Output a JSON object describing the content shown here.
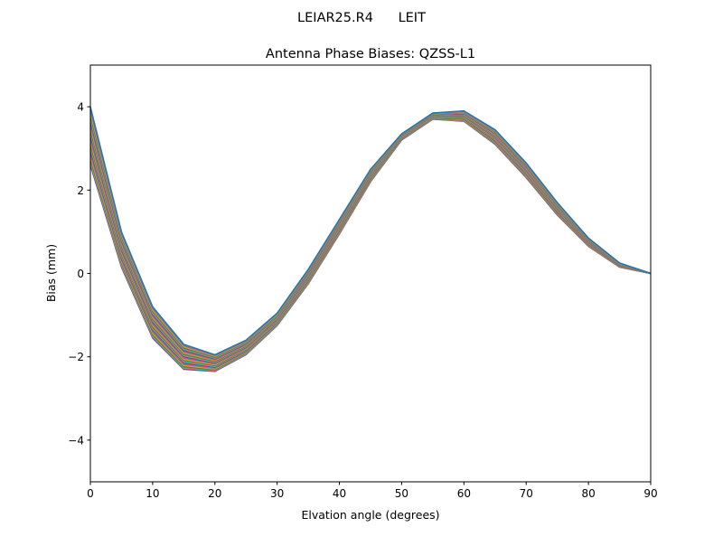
{
  "chart_data": {
    "type": "line",
    "suptitle": "LEIAR25.R4      LEIT",
    "title": "Antenna Phase Biases: QZSS-L1",
    "xlabel": "Elvation angle (degrees)",
    "ylabel": "Bias (mm)",
    "xlim": [
      0,
      90
    ],
    "ylim": [
      -5,
      5
    ],
    "xticks": [
      0,
      10,
      20,
      30,
      40,
      50,
      60,
      70,
      80,
      90
    ],
    "yticks": [
      -4,
      -2,
      0,
      2,
      4
    ],
    "ytick_labels": [
      "−4",
      "−2",
      "0",
      "2",
      "4"
    ],
    "grid": false,
    "x": [
      0,
      5,
      10,
      15,
      20,
      25,
      30,
      35,
      40,
      45,
      50,
      55,
      60,
      65,
      70,
      75,
      80,
      85,
      90
    ],
    "colors": [
      "#1f77b4",
      "#ff7f0e",
      "#2ca02c",
      "#d62728",
      "#9467bd",
      "#8c564b",
      "#e377c2",
      "#7f7f7f",
      "#bcbd22",
      "#17becf"
    ],
    "series": [
      {
        "values": [
          2.6,
          0.15,
          -1.55,
          -2.3,
          -2.35,
          -1.95,
          -1.25,
          -0.25,
          0.95,
          2.2,
          3.2,
          3.7,
          3.65,
          3.1,
          2.3,
          1.4,
          0.65,
          0.15,
          0
        ]
      },
      {
        "values": [
          2.88,
          0.32,
          -1.4,
          -2.18,
          -2.27,
          -1.88,
          -1.19,
          -0.18,
          1.02,
          2.26,
          3.23,
          3.73,
          3.7,
          3.17,
          2.37,
          1.46,
          0.69,
          0.17,
          0
        ]
      },
      {
        "values": [
          3.16,
          0.49,
          -1.25,
          -2.06,
          -2.19,
          -1.81,
          -1.13,
          -0.11,
          1.09,
          2.32,
          3.26,
          3.76,
          3.75,
          3.24,
          2.44,
          1.52,
          0.73,
          0.19,
          0
        ]
      },
      {
        "values": [
          3.44,
          0.66,
          -1.1,
          -1.94,
          -2.11,
          -1.74,
          -1.07,
          -0.04,
          1.16,
          2.38,
          3.29,
          3.79,
          3.8,
          3.31,
          2.51,
          1.58,
          0.77,
          0.21,
          0
        ]
      },
      {
        "values": [
          3.72,
          0.83,
          -0.95,
          -1.82,
          -2.03,
          -1.67,
          -1.01,
          0.03,
          1.23,
          2.44,
          3.32,
          3.82,
          3.85,
          3.38,
          2.58,
          1.64,
          0.81,
          0.23,
          0
        ]
      },
      {
        "values": [
          4.0,
          1.0,
          -0.8,
          -1.7,
          -1.95,
          -1.6,
          -0.95,
          0.1,
          1.3,
          2.5,
          3.35,
          3.85,
          3.9,
          3.45,
          2.65,
          1.7,
          0.85,
          0.25,
          0
        ]
      }
    ]
  }
}
